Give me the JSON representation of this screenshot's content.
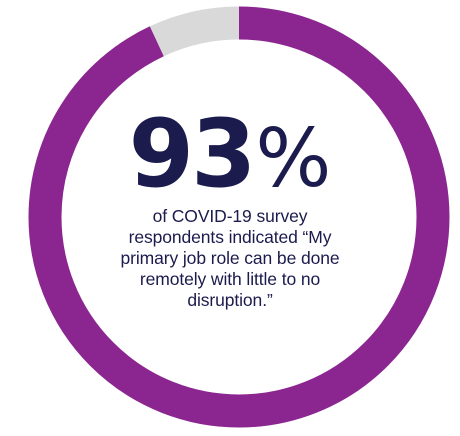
{
  "chart_data": {
    "type": "pie",
    "categories": [
      "",
      ""
    ],
    "values": [
      93,
      7
    ],
    "colors": [
      "#8b2590",
      "#d9d9d9"
    ],
    "value_label": "93",
    "unit": "%",
    "caption": "of COVID-19 survey respondents indicated “My primary job role can be done remotely with little to no disruption.”"
  }
}
